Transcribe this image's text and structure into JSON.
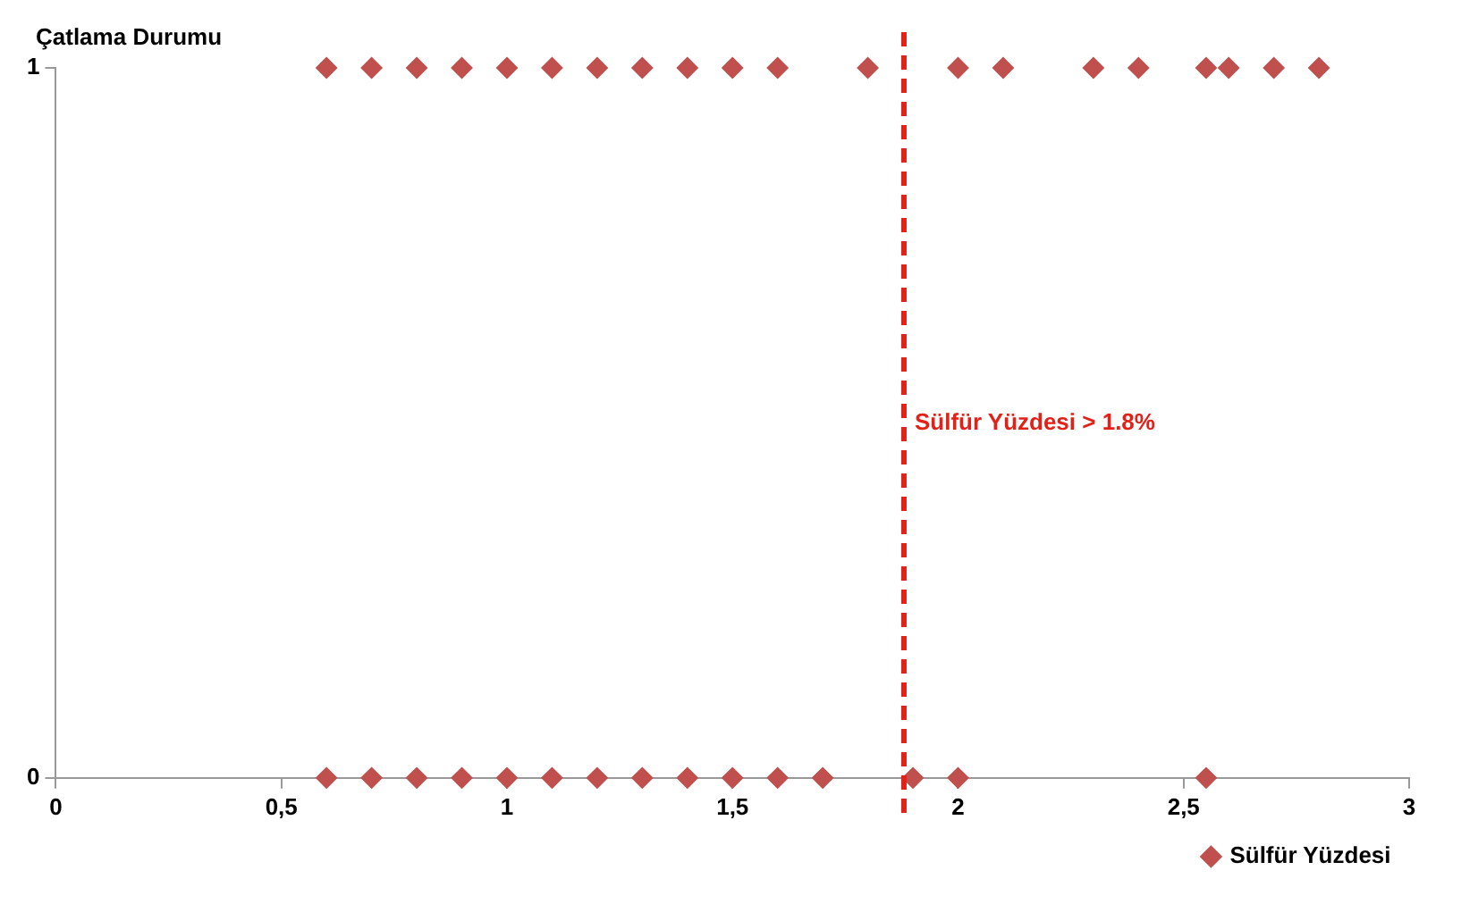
{
  "chart_data": {
    "type": "scatter",
    "ylabel": "Çatlama Durumu",
    "series": [
      {
        "name": "Sülfür Yüzdesi",
        "color": "#c0504d",
        "x": [
          0.6,
          0.7,
          0.8,
          0.9,
          1.0,
          1.1,
          1.2,
          1.3,
          1.4,
          1.5,
          1.6,
          1.8,
          2.0,
          2.1,
          2.3,
          2.4,
          2.55,
          2.6,
          2.7,
          2.8,
          0.6,
          0.7,
          0.8,
          0.9,
          1.0,
          1.1,
          1.2,
          1.3,
          1.4,
          1.5,
          1.6,
          1.7,
          1.9,
          2.0,
          2.55
        ],
        "values": [
          1,
          1,
          1,
          1,
          1,
          1,
          1,
          1,
          1,
          1,
          1,
          1,
          1,
          1,
          1,
          1,
          1,
          1,
          1,
          1,
          0,
          0,
          0,
          0,
          0,
          0,
          0,
          0,
          0,
          0,
          0,
          0,
          0,
          0,
          0
        ]
      }
    ],
    "xlim": [
      0,
      3
    ],
    "xticks": [
      0,
      {
        "value": 0.5,
        "label": "0,5"
      },
      1,
      {
        "value": 1.5,
        "label": "1,5"
      },
      2,
      {
        "value": 2.5,
        "label": "2,5"
      },
      3
    ],
    "ylim": [
      0,
      1
    ],
    "yticks": [
      0,
      1
    ],
    "marker": "diamond",
    "legend": "bottom right",
    "ref_lines": [
      {
        "axis": "x",
        "value": 1.88,
        "label": "Sülfür Yüzdesi > 1.8%",
        "color": "#e32119",
        "line_style": "dashed"
      }
    ]
  }
}
